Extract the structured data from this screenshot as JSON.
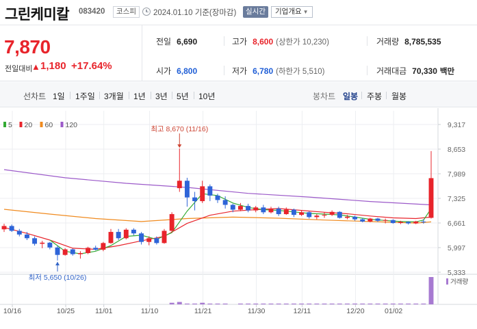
{
  "header": {
    "stock_name": "그린케미칼",
    "stock_code": "083420",
    "market": "코스피",
    "date_text": "2024.01.10 기준(장마감)",
    "realtime_label": "실시간",
    "company_info_label": "기업개요",
    "caret": "▼"
  },
  "price": {
    "current": "7,870",
    "change_label": "전일대비",
    "change_arrow": "▲",
    "change_value": "1,180",
    "change_rate": "+17.64%"
  },
  "stats": {
    "prev_close_label": "전일",
    "prev_close": "6,690",
    "high_label": "고가",
    "high": "8,600",
    "upper_limit_text": "(상한가 10,230)",
    "volume_label": "거래량",
    "volume": "8,785,535",
    "open_label": "시가",
    "open": "6,800",
    "low_label": "저가",
    "low": "6,780",
    "lower_limit_text": "(하한가 5,510)",
    "amount_label": "거래대금",
    "amount": "70,330",
    "amount_unit": "백만"
  },
  "period_bar": {
    "line_chart_label": "선차트",
    "periods": [
      "1일",
      "1주일",
      "3개월",
      "1년",
      "3년",
      "5년",
      "10년"
    ],
    "candle_chart_label": "봉차트",
    "candle_periods": [
      "일봉",
      "주봉",
      "월봉"
    ],
    "active_candle": "일봉"
  },
  "legend": {
    "ma": [
      {
        "label": "5",
        "color": "#33aa33"
      },
      {
        "label": "20",
        "color": "#e8242b"
      },
      {
        "label": "60",
        "color": "#f08a1e"
      },
      {
        "label": "120",
        "color": "#9b59c9"
      }
    ],
    "volume_label": "거래량"
  },
  "annotations": {
    "high_text": "최고 8,670 (11/16)",
    "low_text": "최저 5,650 (10/26)"
  },
  "colors": {
    "up": "#e8242b",
    "down": "#2e64d8",
    "volume": "#a77ad1",
    "grid": "#eceef1"
  },
  "chart_data": {
    "type": "candlestick",
    "y_axis_ticks": [
      "9,317",
      "8,653",
      "7,989",
      "7,325",
      "6,661",
      "5,997",
      "5,333"
    ],
    "ylim": [
      5333,
      9317
    ],
    "x_tick_labels": [
      "10/16",
      "10/25",
      "11/01",
      "11/10",
      "11/21",
      "11/30",
      "12/11",
      "12/20",
      "01/02"
    ],
    "x_tick_index": [
      0,
      7,
      12,
      18,
      25,
      32,
      38,
      45,
      50
    ],
    "candles": [
      [
        6490,
        6640,
        6420,
        6580
      ],
      [
        6580,
        6620,
        6420,
        6450
      ],
      [
        6450,
        6500,
        6300,
        6350
      ],
      [
        6350,
        6420,
        6200,
        6250
      ],
      [
        6250,
        6300,
        6050,
        6100
      ],
      [
        6100,
        6180,
        5980,
        6130
      ],
      [
        6130,
        6150,
        5950,
        6000
      ],
      [
        6000,
        6050,
        5650,
        5800
      ],
      [
        5800,
        5980,
        5780,
        5950
      ],
      [
        5950,
        5970,
        5780,
        5820
      ],
      [
        5820,
        5900,
        5700,
        5850
      ],
      [
        5850,
        6020,
        5820,
        5990
      ],
      [
        5990,
        6050,
        5920,
        5940
      ],
      [
        5940,
        6150,
        5900,
        6120
      ],
      [
        6120,
        6500,
        6100,
        6420
      ],
      [
        6420,
        6500,
        6200,
        6250
      ],
      [
        6250,
        6520,
        6220,
        6480
      ],
      [
        6480,
        6520,
        6330,
        6380
      ],
      [
        6380,
        6420,
        6080,
        6150
      ],
      [
        6150,
        6300,
        6060,
        6250
      ],
      [
        6250,
        6300,
        6080,
        6120
      ],
      [
        6120,
        6500,
        6100,
        6450
      ],
      [
        6450,
        6950,
        6400,
        6900
      ],
      [
        7600,
        8670,
        7500,
        7800
      ],
      [
        7800,
        7880,
        7100,
        7350
      ],
      [
        7350,
        7500,
        7000,
        7250
      ],
      [
        7250,
        7800,
        7200,
        7650
      ],
      [
        7650,
        7700,
        7250,
        7400
      ],
      [
        7400,
        7450,
        7200,
        7280
      ],
      [
        7280,
        7380,
        7050,
        7150
      ],
      [
        7150,
        7180,
        6950,
        7020
      ],
      [
        7020,
        7200,
        6980,
        7120
      ],
      [
        7120,
        7180,
        6950,
        7000
      ],
      [
        7000,
        7120,
        6950,
        7080
      ],
      [
        7080,
        7150,
        6900,
        6950
      ],
      [
        6950,
        7100,
        6920,
        7050
      ],
      [
        7050,
        7100,
        6850,
        6900
      ],
      [
        6900,
        7080,
        6880,
        7020
      ],
      [
        7020,
        7050,
        6820,
        6880
      ],
      [
        6880,
        7000,
        6850,
        6950
      ],
      [
        6950,
        6980,
        6780,
        6820
      ],
      [
        6820,
        6900,
        6760,
        6860
      ],
      [
        6860,
        6950,
        6800,
        6880
      ],
      [
        6880,
        7000,
        6850,
        6960
      ],
      [
        6960,
        6980,
        6780,
        6800
      ],
      [
        6800,
        6880,
        6760,
        6830
      ],
      [
        6830,
        6860,
        6720,
        6760
      ],
      [
        6760,
        6800,
        6680,
        6700
      ],
      [
        6700,
        6800,
        6680,
        6780
      ],
      [
        6780,
        6800,
        6690,
        6720
      ],
      [
        6720,
        6780,
        6650,
        6740
      ],
      [
        6740,
        6760,
        6640,
        6660
      ],
      [
        6660,
        6720,
        6630,
        6690
      ],
      [
        6690,
        6710,
        6620,
        6650
      ],
      [
        6650,
        6720,
        6630,
        6700
      ],
      [
        6700,
        6760,
        6640,
        6690
      ],
      [
        6800,
        8600,
        6780,
        7870
      ]
    ],
    "ma5": [
      [
        6,
        6200
      ],
      [
        8,
        5900
      ],
      [
        10,
        5830
      ],
      [
        12,
        5900
      ],
      [
        14,
        6050
      ],
      [
        16,
        6300
      ],
      [
        18,
        6330
      ],
      [
        20,
        6220
      ],
      [
        22,
        6400
      ],
      [
        24,
        6980
      ],
      [
        26,
        7450
      ],
      [
        28,
        7400
      ],
      [
        30,
        7200
      ],
      [
        32,
        7080
      ],
      [
        34,
        7020
      ],
      [
        36,
        7000
      ],
      [
        38,
        6960
      ],
      [
        40,
        6920
      ],
      [
        42,
        6900
      ],
      [
        44,
        6880
      ],
      [
        46,
        6820
      ],
      [
        48,
        6760
      ],
      [
        50,
        6730
      ],
      [
        52,
        6700
      ],
      [
        54,
        6690
      ],
      [
        55,
        6740
      ],
      [
        56,
        7050
      ]
    ],
    "ma20": [
      [
        0,
        6540
      ],
      [
        3,
        6380
      ],
      [
        6,
        6200
      ],
      [
        9,
        5980
      ],
      [
        12,
        5950
      ],
      [
        15,
        6050
      ],
      [
        18,
        6180
      ],
      [
        21,
        6300
      ],
      [
        24,
        6650
      ],
      [
        27,
        6870
      ],
      [
        30,
        6980
      ],
      [
        33,
        7020
      ],
      [
        36,
        7050
      ],
      [
        39,
        7000
      ],
      [
        42,
        6950
      ],
      [
        45,
        6910
      ],
      [
        48,
        6850
      ],
      [
        51,
        6800
      ],
      [
        54,
        6780
      ],
      [
        56,
        6820
      ]
    ],
    "ma60": [
      [
        0,
        7030
      ],
      [
        6,
        6900
      ],
      [
        12,
        6780
      ],
      [
        18,
        6700
      ],
      [
        24,
        6780
      ],
      [
        30,
        6820
      ],
      [
        36,
        6790
      ],
      [
        42,
        6740
      ],
      [
        48,
        6700
      ],
      [
        54,
        6660
      ],
      [
        56,
        6690
      ]
    ],
    "ma120": [
      [
        0,
        8100
      ],
      [
        8,
        7880
      ],
      [
        16,
        7730
      ],
      [
        24,
        7620
      ],
      [
        32,
        7460
      ],
      [
        40,
        7360
      ],
      [
        48,
        7240
      ],
      [
        56,
        7150
      ]
    ],
    "volume": [
      0,
      0,
      0,
      0,
      0,
      0,
      0,
      0,
      0,
      0,
      0,
      0,
      0,
      0,
      0,
      0,
      0,
      0,
      0,
      0,
      0,
      0,
      2,
      3,
      1,
      1,
      2,
      1,
      1,
      1,
      0,
      1,
      1,
      1,
      1,
      1,
      1,
      1,
      1,
      1,
      1,
      1,
      1,
      1,
      1,
      1,
      1,
      1,
      1,
      1,
      1,
      1,
      1,
      1,
      1,
      1,
      34
    ]
  }
}
